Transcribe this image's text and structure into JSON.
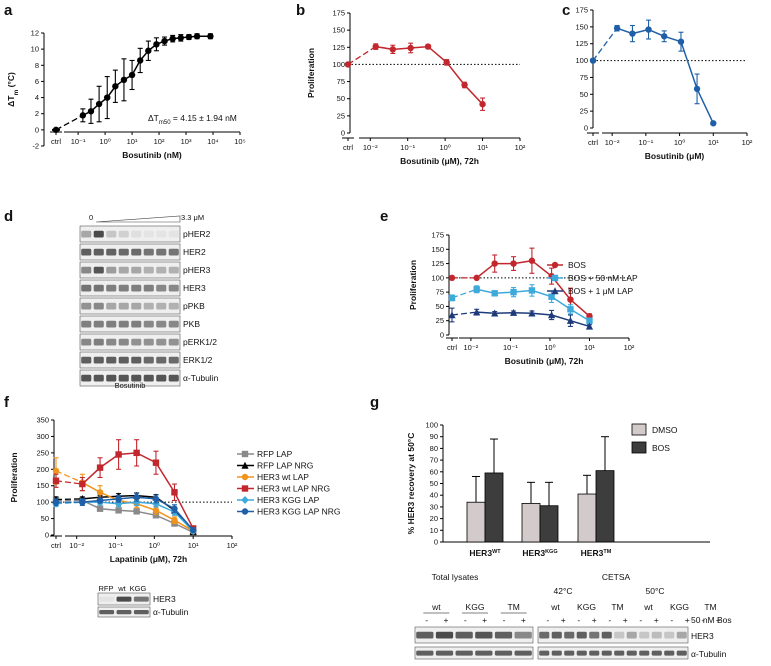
{
  "panel_labels": {
    "a": "a",
    "b": "b",
    "c": "c",
    "d": "d",
    "e": "e",
    "f": "f",
    "g": "g"
  },
  "chart_data": [
    {
      "id": "a",
      "type": "scatter",
      "title": "",
      "xlabel": "Bosutinib (nM)",
      "ylabel": "ΔT",
      "ylabel_sub": "m",
      "ylabel_unit": " (°C)",
      "xscale": "log",
      "xlim": [
        0.03,
        100000
      ],
      "ylim": [
        -2,
        12
      ],
      "yticks": [
        -2,
        0,
        2,
        4,
        6,
        8,
        10,
        12
      ],
      "xticks": [
        {
          "v": 0.1,
          "t": "10⁻¹"
        },
        {
          "v": 1,
          "t": "10⁰"
        },
        {
          "v": 10,
          "t": "10¹"
        },
        {
          "v": 100,
          "t": "10²"
        },
        {
          "v": 1000,
          "t": "10³"
        },
        {
          "v": 10000,
          "t": "10⁴"
        },
        {
          "v": 100000,
          "t": "10⁵"
        }
      ],
      "ctrl_label": "ctrl",
      "ctrl": {
        "y": 0,
        "err": 0
      },
      "series": [
        {
          "color": "#000000",
          "x": [
            0.15,
            0.3,
            0.6,
            1.2,
            2.4,
            5,
            10,
            20,
            40,
            80,
            160,
            320,
            640,
            1280,
            2560,
            8000
          ],
          "y": [
            1.8,
            2.3,
            3.2,
            4.0,
            5.4,
            6.2,
            6.8,
            8.6,
            9.8,
            10.6,
            11.0,
            11.3,
            11.4,
            11.5,
            11.6,
            11.6
          ],
          "err": [
            0.8,
            1.5,
            2.2,
            2.6,
            2.0,
            2.6,
            1.8,
            1.5,
            1.2,
            0.8,
            0.5,
            0.4,
            0.4,
            0.3,
            0.3,
            0.3
          ]
        }
      ],
      "annotation": "ΔT",
      "annotation_sub": "m50",
      "annotation_rest": " = 4.15 ± 1.94 nM"
    },
    {
      "id": "b",
      "type": "line",
      "xlabel": "Bosutinib (μM), 72h",
      "ylabel": "Proliferation",
      "xscale": "log",
      "xlim": [
        0.005,
        100
      ],
      "ylim": [
        0,
        175
      ],
      "yticks": [
        0,
        25,
        50,
        75,
        100,
        125,
        150,
        175
      ],
      "xticks": [
        {
          "v": 0.01,
          "t": "10⁻²"
        },
        {
          "v": 0.1,
          "t": "10⁻¹"
        },
        {
          "v": 1,
          "t": "10⁰"
        },
        {
          "v": 10,
          "t": "10¹"
        },
        {
          "v": 100,
          "t": "10²"
        }
      ],
      "ctrl_label": "ctrl",
      "ctrl": {
        "y": 100,
        "err": 0
      },
      "reference_line": 100,
      "series": [
        {
          "color": "#c1272d",
          "x": [
            0.014,
            0.04,
            0.12,
            0.35,
            1.1,
            3.3,
            10
          ],
          "y": [
            126,
            122,
            124,
            126,
            103,
            70,
            42
          ],
          "err": [
            4,
            6,
            7,
            3,
            4,
            4,
            9
          ]
        }
      ]
    },
    {
      "id": "c",
      "type": "line",
      "xlabel": "Bosutinib (μM)",
      "ylabel": "Proliferation",
      "xscale": "log",
      "xlim": [
        0.005,
        100
      ],
      "ylim": [
        0,
        175
      ],
      "yticks": [
        0,
        25,
        50,
        75,
        100,
        125,
        150,
        175
      ],
      "xticks": [
        {
          "v": 0.01,
          "t": "10⁻²"
        },
        {
          "v": 0.1,
          "t": "10⁻¹"
        },
        {
          "v": 1,
          "t": "10⁰"
        },
        {
          "v": 10,
          "t": "10¹"
        },
        {
          "v": 100,
          "t": "10²"
        }
      ],
      "ctrl_label": "ctrl",
      "ctrl": {
        "y": 100,
        "err": 0
      },
      "reference_line": 100,
      "series": [
        {
          "color": "#1f5fa8",
          "x": [
            0.014,
            0.04,
            0.12,
            0.35,
            1.1,
            3.3,
            10
          ],
          "y": [
            148,
            140,
            146,
            136,
            128,
            58,
            7
          ],
          "err": [
            4,
            12,
            14,
            8,
            14,
            22,
            2
          ]
        }
      ]
    },
    {
      "id": "e",
      "type": "line",
      "xlabel": "Bosutinib (μM), 72h",
      "ylabel": "Proliferation",
      "xscale": "log",
      "xlim": [
        0.005,
        100
      ],
      "ylim": [
        0,
        175
      ],
      "yticks": [
        0,
        25,
        50,
        75,
        100,
        125,
        150,
        175
      ],
      "xticks": [
        {
          "v": 0.01,
          "t": "10⁻²"
        },
        {
          "v": 0.1,
          "t": "10⁻¹"
        },
        {
          "v": 1,
          "t": "10⁰"
        },
        {
          "v": 10,
          "t": "10¹"
        },
        {
          "v": 100,
          "t": "10²"
        }
      ],
      "ctrl_label": "ctrl",
      "reference_line": 100,
      "legend_position": "top-right",
      "series": [
        {
          "name": "BOS",
          "color": "#c1272d",
          "marker": "circle",
          "ctrl": {
            "y": 100,
            "err": 0
          },
          "x": [
            0.014,
            0.04,
            0.12,
            0.35,
            1.1,
            3.3,
            10
          ],
          "y": [
            100,
            125,
            125,
            130,
            103,
            62,
            33
          ],
          "err": [
            0,
            15,
            12,
            22,
            14,
            20,
            4
          ]
        },
        {
          "name": "BOS + 50 nM LAP",
          "color": "#3eaadb",
          "marker": "square",
          "ctrl": {
            "y": 65,
            "err": 5
          },
          "x": [
            0.014,
            0.04,
            0.12,
            0.35,
            1.1,
            3.3,
            10
          ],
          "y": [
            80,
            73,
            75,
            78,
            67,
            45,
            25
          ],
          "err": [
            6,
            4,
            8,
            10,
            10,
            8,
            4
          ]
        },
        {
          "name": "BOS + 1 μM LAP",
          "color": "#1e3a7a",
          "marker": "triangle",
          "ctrl": {
            "y": 35,
            "err": 12
          },
          "x": [
            0.014,
            0.04,
            0.12,
            0.35,
            1.1,
            3.3,
            10
          ],
          "y": [
            40,
            38,
            39,
            38,
            35,
            25,
            15
          ],
          "err": [
            5,
            3,
            3,
            4,
            8,
            10,
            3
          ]
        }
      ]
    },
    {
      "id": "f",
      "type": "line",
      "xlabel": "Lapatinib (μM), 72h",
      "ylabel": "Proliferation",
      "xscale": "log",
      "xlim": [
        0.005,
        100
      ],
      "ylim": [
        0,
        350
      ],
      "yticks": [
        0,
        50,
        100,
        150,
        200,
        250,
        300,
        350
      ],
      "xticks": [
        {
          "v": 0.01,
          "t": "10⁻²"
        },
        {
          "v": 0.1,
          "t": "10⁻¹"
        },
        {
          "v": 1,
          "t": "10⁰"
        },
        {
          "v": 10,
          "t": "10¹"
        },
        {
          "v": 100,
          "t": "10²"
        }
      ],
      "ctrl_label": "ctrl",
      "reference_line": 100,
      "legend_position": "top-right",
      "series": [
        {
          "name": "RFP LAP",
          "color": "#8a8a8a",
          "marker": "square",
          "ctrl": {
            "y": 105,
            "err": 8
          },
          "x": [
            0.014,
            0.04,
            0.12,
            0.35,
            1.1,
            3.3,
            10
          ],
          "y": [
            105,
            80,
            75,
            72,
            60,
            35,
            8
          ],
          "err": [
            8,
            6,
            5,
            6,
            6,
            5,
            2
          ]
        },
        {
          "name": "RFP LAP NRG",
          "color": "#000000",
          "marker": "triangle",
          "ctrl": {
            "y": 108,
            "err": 8
          },
          "x": [
            0.014,
            0.04,
            0.12,
            0.35,
            1.1,
            3.3,
            10
          ],
          "y": [
            110,
            115,
            118,
            120,
            115,
            75,
            10
          ],
          "err": [
            6,
            6,
            8,
            8,
            8,
            10,
            3
          ]
        },
        {
          "name": "HER3 wt LAP",
          "color": "#f0941e",
          "marker": "circle",
          "ctrl": {
            "y": 195,
            "err": 40
          },
          "x": [
            0.014,
            0.04,
            0.12,
            0.35,
            1.1,
            3.3,
            10
          ],
          "y": [
            160,
            130,
            105,
            95,
            75,
            45,
            12
          ],
          "err": [
            25,
            20,
            15,
            12,
            12,
            10,
            3
          ]
        },
        {
          "name": "HER3 wt LAP NRG",
          "color": "#c1272d",
          "marker": "square",
          "ctrl": {
            "y": 165,
            "err": 20
          },
          "x": [
            0.014,
            0.04,
            0.12,
            0.35,
            1.1,
            3.3,
            10
          ],
          "y": [
            155,
            205,
            245,
            250,
            220,
            130,
            20
          ],
          "err": [
            20,
            30,
            45,
            40,
            35,
            25,
            5
          ]
        },
        {
          "name": "HER3 KGG LAP",
          "color": "#3eaadb",
          "marker": "diamond",
          "ctrl": {
            "y": 95,
            "err": 8
          },
          "x": [
            0.014,
            0.04,
            0.12,
            0.35,
            1.1,
            3.3,
            10
          ],
          "y": [
            100,
            100,
            95,
            100,
            95,
            70,
            12
          ],
          "err": [
            8,
            8,
            8,
            10,
            10,
            10,
            3
          ]
        },
        {
          "name": "HER3 KGG LAP NRG",
          "color": "#1f5fa8",
          "marker": "circle",
          "ctrl": {
            "y": 100,
            "err": 10
          },
          "x": [
            0.014,
            0.04,
            0.12,
            0.35,
            1.1,
            3.3,
            10
          ],
          "y": [
            100,
            105,
            110,
            115,
            110,
            80,
            15
          ],
          "err": [
            10,
            8,
            10,
            12,
            12,
            12,
            4
          ]
        }
      ]
    },
    {
      "id": "g",
      "type": "bar",
      "ylabel": "% HER3 recovery at 50°C",
      "ylim": [
        0,
        100
      ],
      "yticks": [
        0,
        10,
        20,
        30,
        40,
        50,
        60,
        70,
        80,
        90,
        100
      ],
      "categories": [
        {
          "base": "HER3",
          "sup": "WT"
        },
        {
          "base": "HER3",
          "sup": "KGG"
        },
        {
          "base": "HER3",
          "sup": "TM"
        }
      ],
      "legend_position": "top-right",
      "series": [
        {
          "name": "DMSO",
          "color": "#d3cacb",
          "values": [
            34,
            33,
            41
          ],
          "err": [
            22,
            18,
            16
          ]
        },
        {
          "name": "BOS",
          "color": "#3d3d3d",
          "values": [
            59,
            31,
            61
          ],
          "err": [
            29,
            20,
            29
          ]
        }
      ]
    }
  ],
  "blot_d": {
    "conc_start": "0",
    "conc_end": "3.3 μM",
    "rows": [
      "pHER2",
      "HER2",
      "pHER3",
      "HER3",
      "pPKB",
      "PKB",
      "pERK1/2",
      "ERK1/2",
      "α-Tubulin"
    ],
    "caption": "Bosutinib"
  },
  "blot_f": {
    "lanes": [
      "RFP",
      "wt",
      "KGG"
    ],
    "rows": [
      "HER3",
      "α-Tubulin"
    ]
  },
  "blot_g": {
    "total_title": "Total lysates",
    "cetsa_title": "CETSA",
    "temp1": "42°C",
    "temp2": "50°C",
    "groups": [
      "wt",
      "KGG",
      "TM"
    ],
    "signs": [
      "-",
      "+",
      "-",
      "+",
      "-",
      "+"
    ],
    "treatment": "50 nM Bos",
    "rows": [
      "HER3",
      "α-Tubulin"
    ]
  }
}
